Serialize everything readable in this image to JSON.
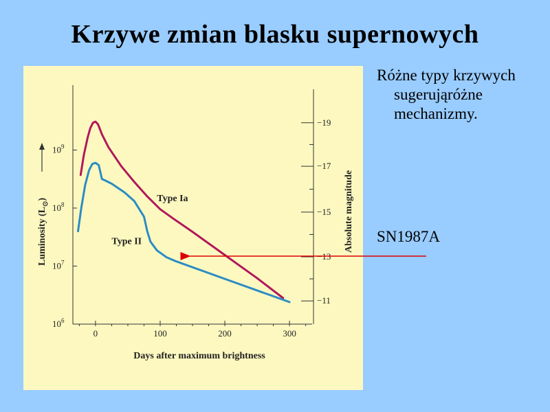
{
  "slide": {
    "title": "Krzywe zmian blasku supernowych",
    "bullet": "Różne typy krzywych sugerująróżne mechanizmy.",
    "annotation": "SN1987A",
    "arrow_color": "#dd0000"
  },
  "chart_data": {
    "type": "line",
    "title": "",
    "xlabel": "Days after maximum brightness",
    "ylabel": "Luminosity (L",
    "ylabel_sub": "⊙",
    "ylabel_close": ")",
    "y2label": "Absolute magnitude",
    "xlim": [
      -35,
      335
    ],
    "ylim_log10": [
      6,
      10
    ],
    "log_scale_y": true,
    "x_ticks": [
      {
        "value": 0,
        "label": "0"
      },
      {
        "value": 100,
        "label": "100"
      },
      {
        "value": 200,
        "label": "200"
      },
      {
        "value": 300,
        "label": "300"
      }
    ],
    "y_ticks": [
      {
        "value": 6,
        "base": "10",
        "exp": "6"
      },
      {
        "value": 7,
        "base": "10",
        "exp": "7"
      },
      {
        "value": 8,
        "base": "10",
        "exp": "8"
      },
      {
        "value": 9,
        "base": "10",
        "exp": "9"
      }
    ],
    "y2_ticks": [
      {
        "log_l": 9.47,
        "label": "−19"
      },
      {
        "log_l": 8.72,
        "label": "−17"
      },
      {
        "log_l": 7.93,
        "label": "−15"
      },
      {
        "log_l": 7.16,
        "label": "−13"
      },
      {
        "log_l": 6.4,
        "label": "−11"
      }
    ],
    "series": [
      {
        "name": "Type Ia",
        "color": "#b0185a",
        "points": [
          [
            -23,
            8.57
          ],
          [
            -18,
            8.92
          ],
          [
            -12,
            9.22
          ],
          [
            -8,
            9.38
          ],
          [
            -4,
            9.47
          ],
          [
            0,
            9.49
          ],
          [
            4,
            9.44
          ],
          [
            10,
            9.27
          ],
          [
            20,
            9.05
          ],
          [
            40,
            8.72
          ],
          [
            60,
            8.45
          ],
          [
            80,
            8.2
          ],
          [
            100,
            7.98
          ],
          [
            120,
            7.82
          ],
          [
            150,
            7.59
          ],
          [
            200,
            7.19
          ],
          [
            250,
            6.79
          ],
          [
            290,
            6.45
          ]
        ]
      },
      {
        "name": "Type II",
        "color": "#2b8cc4",
        "points": [
          [
            -27,
            7.6
          ],
          [
            -22,
            8.0
          ],
          [
            -16,
            8.4
          ],
          [
            -10,
            8.65
          ],
          [
            -5,
            8.76
          ],
          [
            0,
            8.78
          ],
          [
            5,
            8.74
          ],
          [
            8,
            8.6
          ],
          [
            10,
            8.5
          ],
          [
            14,
            8.48
          ],
          [
            25,
            8.42
          ],
          [
            45,
            8.27
          ],
          [
            60,
            8.12
          ],
          [
            75,
            7.85
          ],
          [
            80,
            7.6
          ],
          [
            85,
            7.42
          ],
          [
            95,
            7.27
          ],
          [
            110,
            7.15
          ],
          [
            125,
            7.08
          ],
          [
            200,
            6.78
          ],
          [
            260,
            6.54
          ],
          [
            300,
            6.38
          ]
        ]
      }
    ],
    "annotations": [
      {
        "text": "Type Ia",
        "x": 95,
        "y": 8.12
      },
      {
        "text": "Type II",
        "x": 25,
        "y": 7.38
      }
    ]
  }
}
